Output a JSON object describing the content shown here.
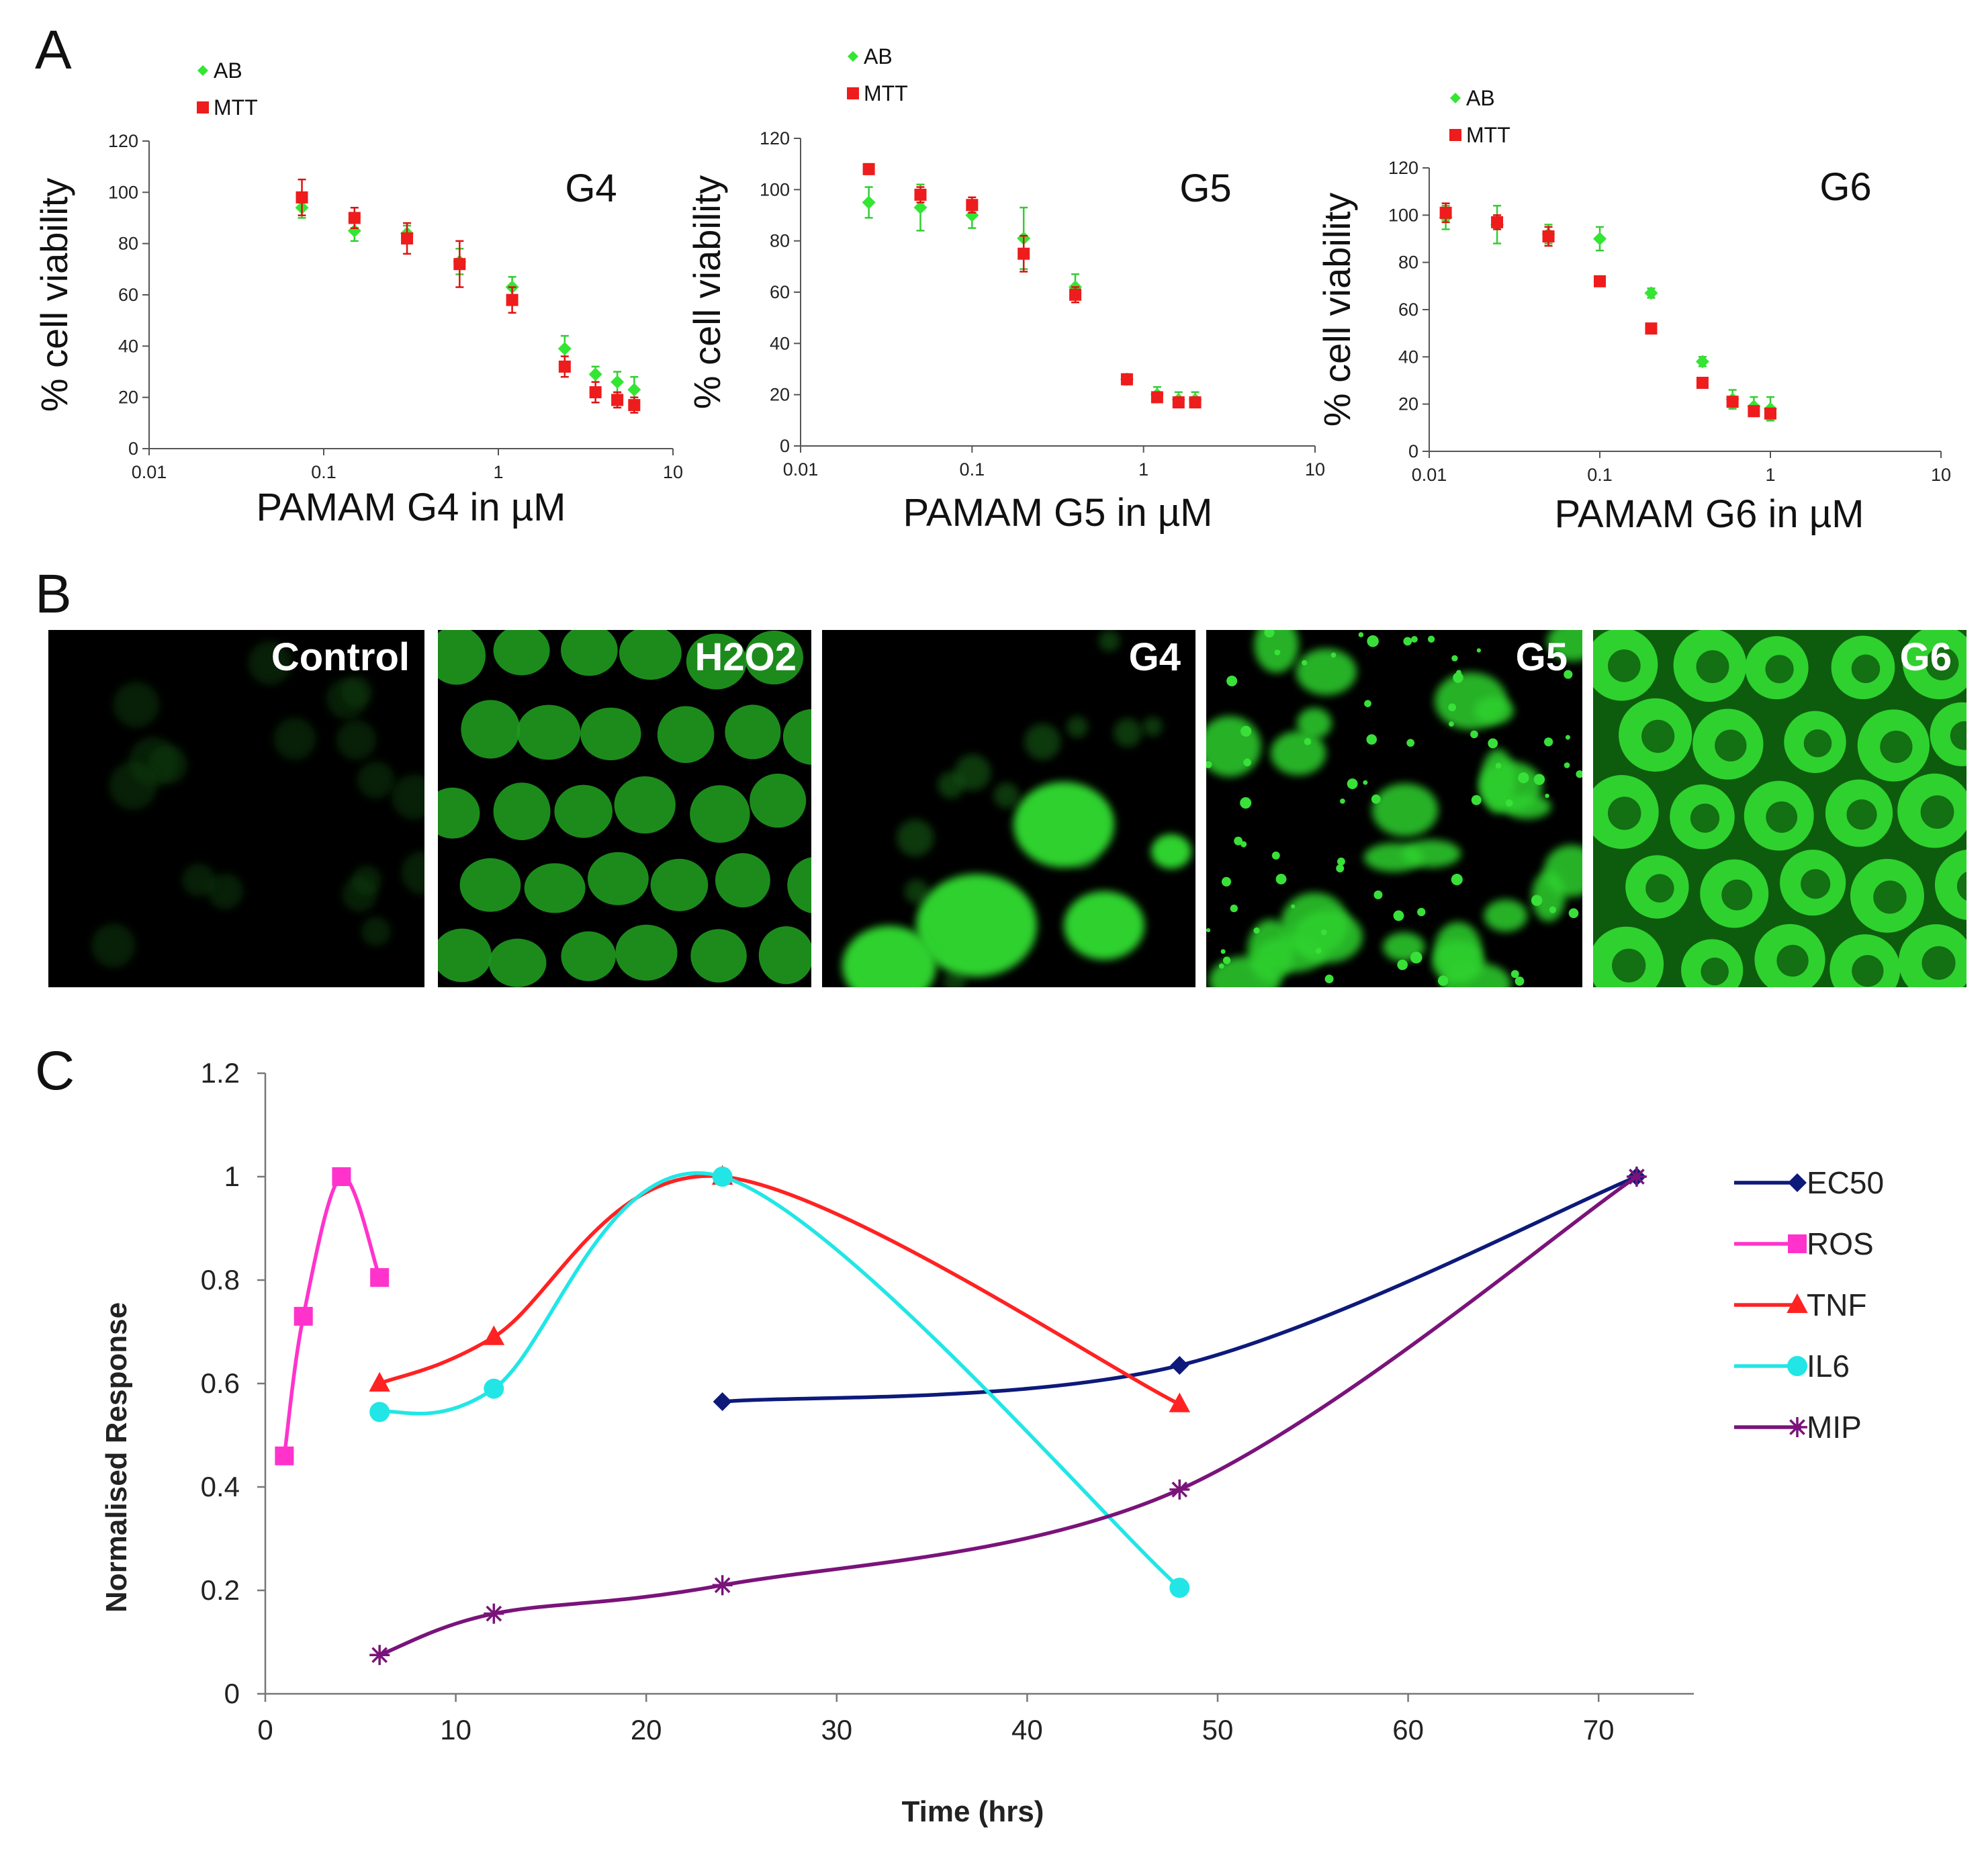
{
  "panels": {
    "A": "A",
    "B": "B",
    "C": "C"
  },
  "colors": {
    "ab": "#33e633",
    "mtt": "#ee1c1c",
    "error_ab": "#33cc33",
    "error_mtt": "#dd1111",
    "microscopy_bg": "#000000",
    "microscopy_cell": "#2fd12f",
    "EC50": "#0d1a7a",
    "ROS": "#ff33cc",
    "TNF": "#ff2222",
    "IL6": "#22e6e6",
    "MIP": "#7a137a"
  },
  "microscopy": {
    "labels": [
      "Control",
      "H2O2",
      "G4",
      "G5",
      "G6"
    ]
  },
  "chart_data": [
    {
      "panel": "A",
      "type": "scatter",
      "title": "G4",
      "xlabel": "PAMAM  G4 in µM",
      "ylabel": "% cell viability",
      "xscale": "log",
      "xlim": [
        0.01,
        10
      ],
      "ylim": [
        0,
        120
      ],
      "xticks": [
        0.01,
        0.1,
        1,
        10
      ],
      "xtick_labels": [
        "0.01",
        "0.1",
        "1",
        "10"
      ],
      "yticks": [
        0,
        20,
        40,
        60,
        80,
        100,
        120
      ],
      "ytick_labels": [
        "0",
        "20",
        "40",
        "60",
        "80",
        "100",
        "120"
      ],
      "legend": "top-left",
      "series": [
        {
          "name": "AB",
          "marker": "diamond",
          "x": [
            0.075,
            0.15,
            0.3,
            0.6,
            1.2,
            2.4,
            3.6,
            4.8,
            6
          ],
          "y": [
            94,
            85,
            84,
            73,
            63,
            39,
            29,
            26,
            23
          ],
          "err": [
            4,
            4,
            3,
            5,
            4,
            5,
            3,
            4,
            5
          ]
        },
        {
          "name": "MTT",
          "marker": "square",
          "x": [
            0.075,
            0.15,
            0.3,
            0.6,
            1.2,
            2.4,
            3.6,
            4.8,
            6
          ],
          "y": [
            98,
            90,
            82,
            72,
            58,
            32,
            22,
            19,
            17
          ],
          "err": [
            7,
            4,
            6,
            9,
            5,
            4,
            4,
            3,
            3
          ]
        }
      ]
    },
    {
      "panel": "A",
      "type": "scatter",
      "title": "G5",
      "xlabel": "PAMAM  G5 in µM",
      "ylabel": "% cell viability",
      "xscale": "log",
      "xlim": [
        0.01,
        10
      ],
      "ylim": [
        0,
        120
      ],
      "xticks": [
        0.01,
        0.1,
        1,
        10
      ],
      "xtick_labels": [
        "0.01",
        "0.1",
        "1",
        "10"
      ],
      "yticks": [
        0,
        20,
        40,
        60,
        80,
        100,
        120
      ],
      "ytick_labels": [
        "0",
        "20",
        "40",
        "60",
        "80",
        "100",
        "120"
      ],
      "legend": "top-left",
      "series": [
        {
          "name": "AB",
          "marker": "diamond",
          "x": [
            0.025,
            0.05,
            0.1,
            0.2,
            0.4,
            0.8,
            1.2,
            1.6,
            2
          ],
          "y": [
            95,
            93,
            90,
            81,
            62,
            26,
            20,
            18,
            18
          ],
          "err": [
            6,
            9,
            5,
            12,
            5,
            2,
            3,
            3,
            3
          ]
        },
        {
          "name": "MTT",
          "marker": "square",
          "x": [
            0.025,
            0.05,
            0.1,
            0.2,
            0.4,
            0.8,
            1.2,
            1.6,
            2
          ],
          "y": [
            108,
            98,
            94,
            75,
            59,
            26,
            19,
            17,
            17
          ],
          "err": [
            2,
            3,
            3,
            7,
            3,
            2,
            2,
            2,
            2
          ]
        }
      ]
    },
    {
      "panel": "A",
      "type": "scatter",
      "title": "G6",
      "xlabel": "PAMAM  G6 in µM",
      "ylabel": "% cell viability",
      "xscale": "log",
      "xlim": [
        0.01,
        10
      ],
      "ylim": [
        0,
        120
      ],
      "xticks": [
        0.01,
        0.1,
        1,
        10
      ],
      "xtick_labels": [
        "0.01",
        "0.1",
        "1",
        "10"
      ],
      "yticks": [
        0,
        20,
        40,
        60,
        80,
        100,
        120
      ],
      "ytick_labels": [
        "0",
        "20",
        "40",
        "60",
        "80",
        "100",
        "120"
      ],
      "legend": "top-left",
      "series": [
        {
          "name": "AB",
          "marker": "diamond",
          "x": [
            0.0125,
            0.025,
            0.05,
            0.1,
            0.2,
            0.4,
            0.6,
            0.8,
            1
          ],
          "y": [
            99,
            96,
            92,
            90,
            67,
            38,
            22,
            19,
            18
          ],
          "err": [
            5,
            8,
            4,
            5,
            2,
            2,
            4,
            4,
            5
          ]
        },
        {
          "name": "MTT",
          "marker": "square",
          "x": [
            0.0125,
            0.025,
            0.05,
            0.1,
            0.2,
            0.4,
            0.6,
            0.8,
            1
          ],
          "y": [
            101,
            97,
            91,
            72,
            52,
            29,
            21,
            17,
            16
          ],
          "err": [
            4,
            3,
            4,
            2,
            2,
            2,
            2,
            2,
            2
          ]
        }
      ]
    },
    {
      "panel": "C",
      "type": "line",
      "xlabel": "Time (hrs)",
      "ylabel": "Normalised Response",
      "xlim": [
        0,
        75
      ],
      "ylim": [
        0,
        1.2
      ],
      "xticks": [
        0,
        10,
        20,
        30,
        40,
        50,
        60,
        70
      ],
      "xtick_labels": [
        "0",
        "10",
        "20",
        "30",
        "40",
        "50",
        "60",
        "70"
      ],
      "yticks": [
        0,
        0.2,
        0.4,
        0.6,
        0.8,
        1,
        1.2
      ],
      "ytick_labels": [
        "0",
        "0.2",
        "0.4",
        "0.6",
        "0.8",
        "1",
        "1.2"
      ],
      "legend": "right",
      "smooth": true,
      "series": [
        {
          "name": "EC50",
          "marker": "diamond",
          "x": [
            24,
            48,
            72
          ],
          "y": [
            0.565,
            0.635,
            1.0
          ]
        },
        {
          "name": "ROS",
          "marker": "square",
          "x": [
            1,
            2,
            4,
            6
          ],
          "y": [
            0.46,
            0.73,
            1.0,
            0.805
          ]
        },
        {
          "name": "TNF",
          "marker": "triangle",
          "x": [
            6,
            12,
            24,
            48
          ],
          "y": [
            0.6,
            0.69,
            1.0,
            0.56
          ]
        },
        {
          "name": "IL6",
          "marker": "circle",
          "x": [
            6,
            12,
            24,
            48
          ],
          "y": [
            0.545,
            0.59,
            1.0,
            0.205
          ]
        },
        {
          "name": "MIP",
          "marker": "star",
          "x": [
            6,
            12,
            24,
            48,
            72
          ],
          "y": [
            0.075,
            0.155,
            0.21,
            0.395,
            1.0
          ]
        }
      ]
    }
  ]
}
